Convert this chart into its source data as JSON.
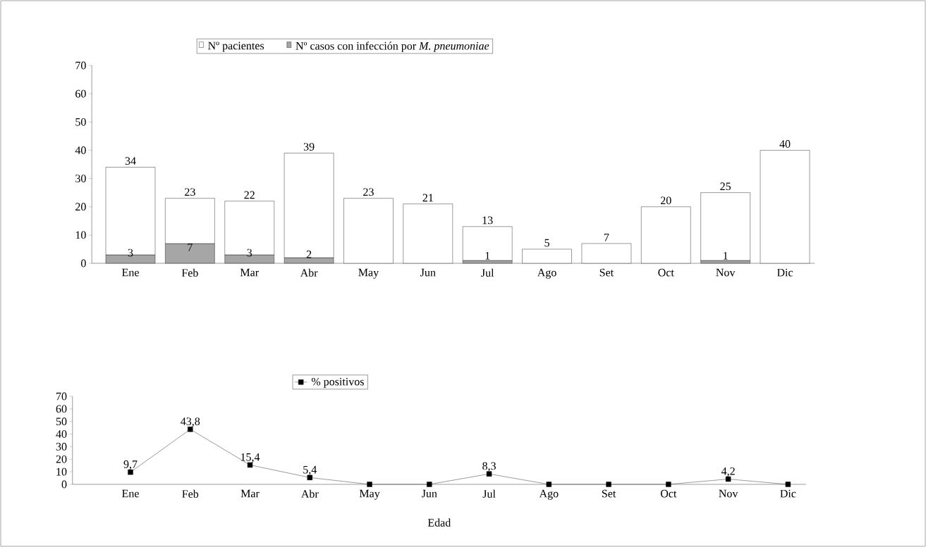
{
  "chart_data": [
    {
      "type": "bar",
      "categories": [
        "Ene",
        "Feb",
        "Mar",
        "Abr",
        "May",
        "Jun",
        "Jul",
        "Ago",
        "Set",
        "Oct",
        "Nov",
        "Dic"
      ],
      "stacked": true,
      "series": [
        {
          "name": "Nº casos con infección por *M. pneumoniae*",
          "color": "#a6a6a6",
          "values": [
            3,
            7,
            3,
            2,
            null,
            null,
            1,
            null,
            null,
            null,
            1,
            null
          ],
          "value_labels": [
            "3",
            "7",
            "3",
            "2",
            null,
            null,
            "1",
            null,
            null,
            null,
            "1",
            null
          ]
        },
        {
          "name": "Nº pacientes",
          "color": "#ffffff",
          "values": [
            31,
            16,
            19,
            37,
            23,
            21,
            12,
            5,
            7,
            20,
            24,
            40
          ]
        }
      ],
      "totals": [
        "34",
        "23",
        "22",
        "39",
        "23",
        "21",
        "13",
        "5",
        "7",
        "20",
        "25",
        "40"
      ],
      "ylim": [
        0,
        70
      ],
      "yticks": [
        0,
        10,
        20,
        30,
        40,
        50,
        60,
        70
      ],
      "legend": "top"
    },
    {
      "type": "line",
      "categories": [
        "Ene",
        "Feb",
        "Mar",
        "Abr",
        "May",
        "Jun",
        "Jul",
        "Ago",
        "Set",
        "Oct",
        "Nov",
        "Dic"
      ],
      "series": [
        {
          "name": "% positivos",
          "color": "#000000",
          "values": [
            9.7,
            43.8,
            15.4,
            5.4,
            0,
            0,
            8.3,
            0,
            0,
            0,
            4.2,
            0
          ],
          "value_labels": [
            "9,7",
            "43,8",
            "15,4",
            "5,4",
            null,
            null,
            "8,3",
            null,
            null,
            null,
            "4,2",
            null
          ]
        }
      ],
      "xlabel": "Edad",
      "ylim": [
        0,
        70
      ],
      "yticks": [
        0,
        10,
        20,
        30,
        40,
        50,
        60,
        70
      ],
      "marker": "square",
      "legend": "top left"
    }
  ]
}
